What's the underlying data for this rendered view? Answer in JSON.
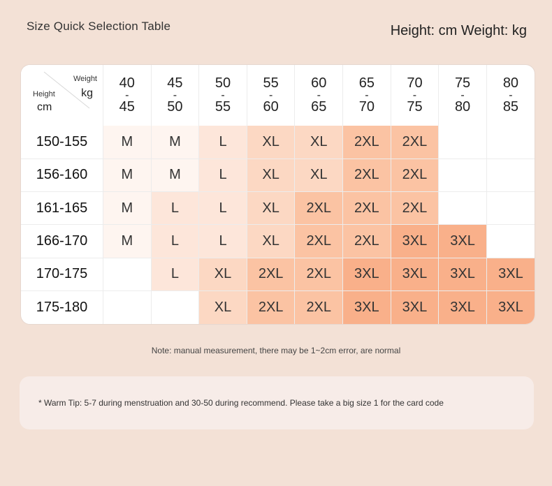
{
  "header": {
    "title": "Size Quick Selection Table",
    "units": "Height: cm Weight: kg"
  },
  "table": {
    "corner": {
      "weight_label": "Weight",
      "weight_unit": "kg",
      "height_label": "Height",
      "height_unit": "cm"
    },
    "weight_ranges": [
      {
        "from": "40",
        "to": "45"
      },
      {
        "from": "45",
        "to": "50"
      },
      {
        "from": "50",
        "to": "55"
      },
      {
        "from": "55",
        "to": "60"
      },
      {
        "from": "60",
        "to": "65"
      },
      {
        "from": "65",
        "to": "70"
      },
      {
        "from": "70",
        "to": "75"
      },
      {
        "from": "75",
        "to": "80"
      },
      {
        "from": "80",
        "to": "85"
      }
    ],
    "range_separator": "-",
    "rows": [
      {
        "height": "150-155",
        "sizes": [
          "M",
          "M",
          "L",
          "XL",
          "XL",
          "2XL",
          "2XL",
          "",
          ""
        ]
      },
      {
        "height": "156-160",
        "sizes": [
          "M",
          "M",
          "L",
          "XL",
          "XL",
          "2XL",
          "2XL",
          "",
          ""
        ]
      },
      {
        "height": "161-165",
        "sizes": [
          "M",
          "L",
          "L",
          "XL",
          "2XL",
          "2XL",
          "2XL",
          "",
          ""
        ]
      },
      {
        "height": "166-170",
        "sizes": [
          "M",
          "L",
          "L",
          "XL",
          "2XL",
          "2XL",
          "3XL",
          "3XL",
          ""
        ]
      },
      {
        "height": "170-175",
        "sizes": [
          "",
          "L",
          "XL",
          "2XL",
          "2XL",
          "3XL",
          "3XL",
          "3XL",
          "3XL"
        ]
      },
      {
        "height": "175-180",
        "sizes": [
          "",
          "",
          "XL",
          "2XL",
          "2XL",
          "3XL",
          "3XL",
          "3XL",
          "3XL"
        ]
      }
    ],
    "size_colors": {
      "M": "#fef5f0",
      "L": "#fde6da",
      "XL": "#fcd8c3",
      "2XL": "#fbc3a3",
      "3XL": "#f9b08a",
      "": "#ffffff"
    }
  },
  "note": "Note: manual measurement, there may be 1~2cm error, are normal",
  "tip": "* Warm Tip: 5-7 during menstruation and 30-50 during recommend. Please take a big size 1 for the card code",
  "colors": {
    "page_background": "#f3e1d6",
    "tip_background": "#f7ece8"
  }
}
